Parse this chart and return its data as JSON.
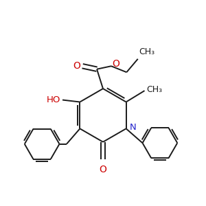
{
  "bg_color": "#ffffff",
  "bond_color": "#1a1a1a",
  "oxygen_color": "#cc0000",
  "nitrogen_color": "#2222cc",
  "lw": 1.4,
  "dbo": 0.012,
  "figsize": [
    3.0,
    3.0
  ],
  "dpi": 100,
  "xlim": [
    0.0,
    1.0
  ],
  "ylim": [
    0.0,
    1.0
  ]
}
